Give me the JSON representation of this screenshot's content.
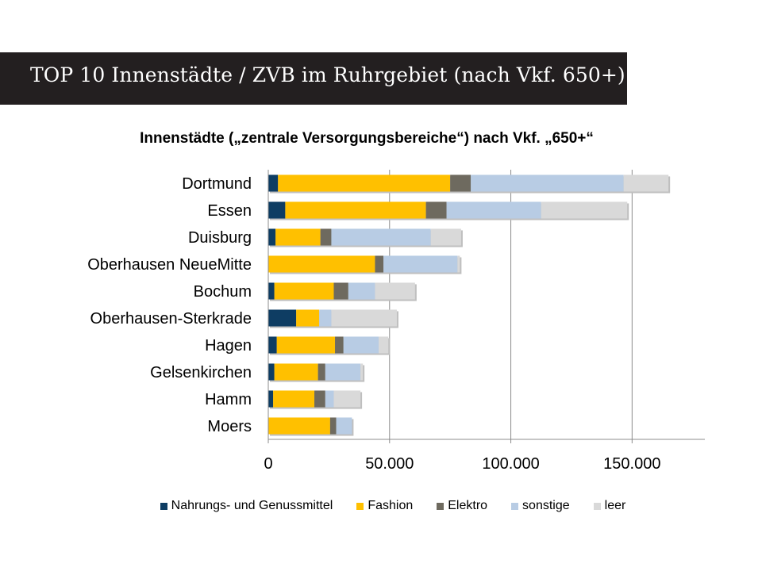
{
  "slide": {
    "title": "TOP 10 Innenstädte / ZVB im Ruhrgebiet (nach Vkf. 650+)"
  },
  "chart_data": {
    "type": "bar",
    "orientation": "horizontal",
    "stacked": true,
    "title": "Innenstädte („zentrale Versorgungsbereiche“) nach Vkf. „650+“",
    "categories": [
      "Dortmund",
      "Essen",
      "Duisburg",
      "Oberhausen NeueMitte",
      "Bochum",
      "Oberhausen-Sterkrade",
      "Hagen",
      "Gelsenkirchen",
      "Hamm",
      "Moers"
    ],
    "series": [
      {
        "name": "Nahrungs- und Genussmittel",
        "color": "#0e3d63",
        "values": [
          4000,
          7000,
          3000,
          0,
          2500,
          11500,
          3500,
          2500,
          2000,
          0
        ]
      },
      {
        "name": "Fashion",
        "color": "#ffc000",
        "values": [
          71000,
          58000,
          18500,
          44000,
          24500,
          9500,
          24000,
          18000,
          17000,
          25500
        ]
      },
      {
        "name": "Elektro",
        "color": "#6e6a5f",
        "values": [
          8500,
          8500,
          4500,
          3500,
          6000,
          0,
          3500,
          3000,
          4500,
          2500
        ]
      },
      {
        "name": "sonstige",
        "color": "#b8cce4",
        "values": [
          63000,
          39000,
          41000,
          30500,
          11000,
          5000,
          14500,
          14500,
          3500,
          6500
        ]
      },
      {
        "name": "leer",
        "color": "#d9d9d9",
        "values": [
          18500,
          35500,
          12500,
          1000,
          16500,
          27000,
          4000,
          1000,
          11000,
          0
        ]
      }
    ],
    "x_ticks": [
      "0",
      "50.000",
      "100.000",
      "150.000"
    ],
    "tick_values": [
      0,
      50000,
      100000,
      150000
    ],
    "xlim": [
      0,
      180000
    ],
    "grid": true,
    "legend_position": "bottom"
  }
}
